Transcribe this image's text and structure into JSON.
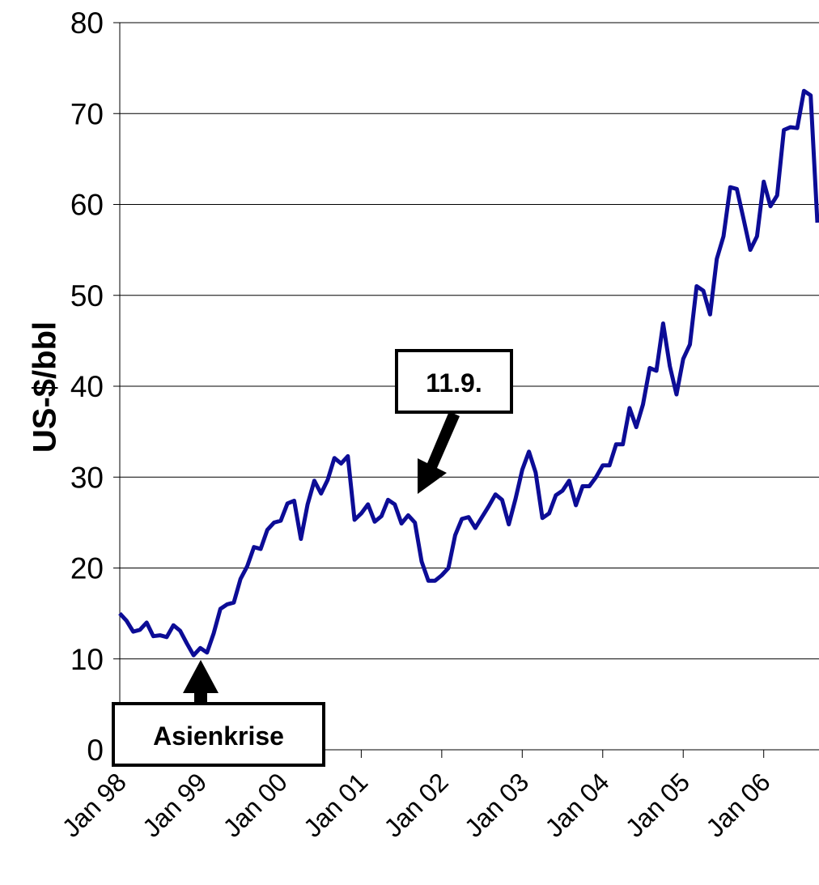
{
  "chart_data": {
    "type": "line",
    "ylabel": "US-$/bbl",
    "categories": [
      "Jan 98",
      null,
      null,
      null,
      null,
      null,
      null,
      null,
      null,
      null,
      null,
      null,
      "Jan 99",
      null,
      null,
      null,
      null,
      null,
      null,
      null,
      null,
      null,
      null,
      null,
      "Jan 00",
      null,
      null,
      null,
      null,
      null,
      null,
      null,
      null,
      null,
      null,
      null,
      "Jan 01",
      null,
      null,
      null,
      null,
      null,
      null,
      null,
      null,
      null,
      null,
      null,
      "Jan 02",
      null,
      null,
      null,
      null,
      null,
      null,
      null,
      null,
      null,
      null,
      null,
      "Jan 03",
      null,
      null,
      null,
      null,
      null,
      null,
      null,
      null,
      null,
      null,
      null,
      "Jan 04",
      null,
      null,
      null,
      null,
      null,
      null,
      null,
      null,
      null,
      null,
      null,
      "Jan 05",
      null,
      null,
      null,
      null,
      null,
      null,
      null,
      null,
      null,
      null,
      null,
      "Jan 06",
      null,
      null,
      null,
      null,
      null,
      null,
      null,
      null
    ],
    "series": [
      {
        "color": "#0c0c96",
        "values": [
          15,
          14.2,
          13,
          13.2,
          14,
          12.5,
          12.6,
          12.4,
          13.7,
          13.1,
          11.7,
          10.4,
          11.2,
          10.7,
          12.8,
          15.5,
          16,
          16.2,
          18.8,
          20.2,
          22.3,
          22.1,
          24.2,
          25,
          25.2,
          27.1,
          27.4,
          23.2,
          27,
          29.6,
          28.2,
          29.7,
          32.1,
          31.5,
          32.3,
          25.3,
          26,
          27,
          25.1,
          25.7,
          27.5,
          27,
          24.9,
          25.8,
          25,
          20.7,
          18.6,
          18.6,
          19.2,
          20,
          23.6,
          25.4,
          25.6,
          24.4,
          25.6,
          26.8,
          28.1,
          27.5,
          24.8,
          27.6,
          30.8,
          32.8,
          30.5,
          25.5,
          26,
          28,
          28.5,
          29.6,
          26.9,
          29,
          29,
          30,
          31.3,
          31.3,
          33.6,
          33.6,
          37.6,
          35.5,
          38,
          42,
          41.7,
          46.9,
          42.2,
          39.1,
          43,
          44.6,
          51,
          50.5,
          47.9,
          54,
          56.5,
          61.9,
          61.7,
          58.4,
          55,
          56.5,
          62.5,
          59.8,
          61,
          68.2,
          68.5,
          68.4,
          72.5,
          72,
          58
        ]
      }
    ],
    "ylim": [
      0,
      80
    ],
    "yticks": [
      0,
      10,
      20,
      30,
      40,
      50,
      60,
      70,
      80
    ],
    "grid": true,
    "annotations": [
      {
        "text": "11.9."
      },
      {
        "text": "Asienkrise"
      }
    ]
  }
}
